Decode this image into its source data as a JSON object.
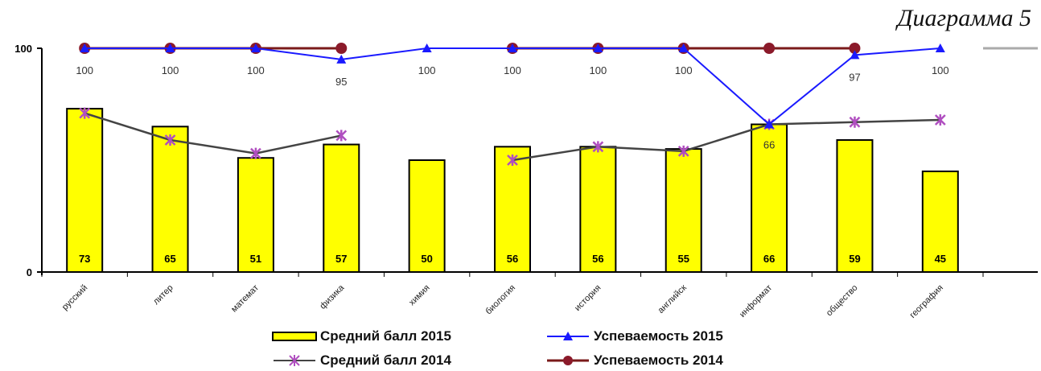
{
  "caption": "Диаграмма 5",
  "chart_data": {
    "type": "bar",
    "categories": [
      "русский",
      "литер",
      "математ",
      "физика",
      "химия",
      "биология",
      "история",
      "английск",
      "информат",
      "общество",
      "география"
    ],
    "ylim": [
      0,
      100
    ],
    "yticks": [
      "0",
      "100"
    ],
    "series": [
      {
        "name": "Средний балл 2015",
        "kind": "bar",
        "color": "#ffff00",
        "values": [
          73,
          65,
          51,
          57,
          50,
          56,
          56,
          55,
          66,
          59,
          45
        ],
        "labels": [
          "73",
          "65",
          "51",
          "57",
          "50",
          "56",
          "56",
          "55",
          "66",
          "59",
          "45"
        ]
      },
      {
        "name": "Успеваемость 2015",
        "kind": "line",
        "color": "#1a1aff",
        "marker": "triangle",
        "values": [
          100,
          100,
          100,
          95,
          100,
          100,
          100,
          100,
          66,
          97,
          100
        ],
        "labels": [
          "100",
          "100",
          "100",
          "95",
          "100",
          "100",
          "100",
          "100",
          "66",
          "97",
          "100"
        ]
      },
      {
        "name": "Средний балл 2014",
        "kind": "line",
        "color": "#444444",
        "marker": "star",
        "values": [
          71,
          59,
          53,
          61,
          null,
          50,
          56,
          54,
          66,
          67,
          68
        ]
      },
      {
        "name": "Успеваемость 2014",
        "kind": "line",
        "color": "#7a1a1a",
        "marker": "circle",
        "values": [
          100,
          100,
          100,
          100,
          null,
          100,
          100,
          100,
          100,
          100,
          null
        ]
      }
    ]
  }
}
